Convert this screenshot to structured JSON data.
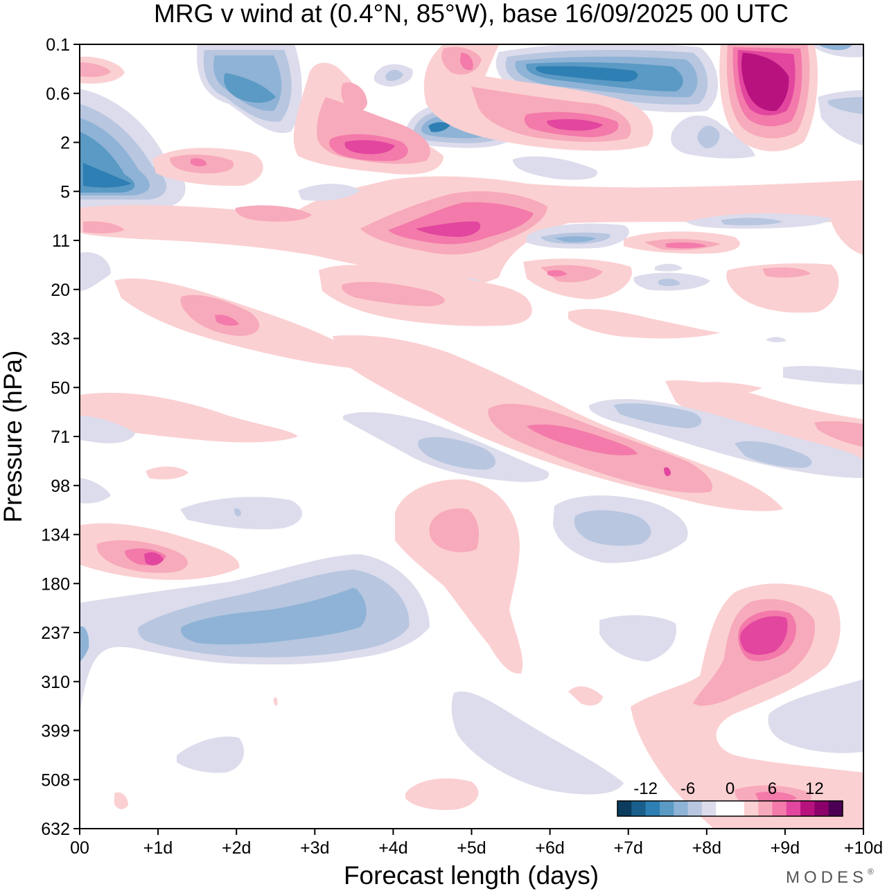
{
  "chart_data": {
    "type": "contourf",
    "title": "MRG v wind at (0.4°N, 85°W),  base 16/09/2025  00 UTC",
    "xlabel": "Forecast length (days)",
    "ylabel": "Pressure (hPa)",
    "x_unit": "days",
    "xlim": [
      0,
      10
    ],
    "x_ticks": [
      {
        "value": 0,
        "label": "00"
      },
      {
        "value": 1,
        "label": "+1d"
      },
      {
        "value": 2,
        "label": "+2d"
      },
      {
        "value": 3,
        "label": "+3d"
      },
      {
        "value": 4,
        "label": "+4d"
      },
      {
        "value": 5,
        "label": "+5d"
      },
      {
        "value": 6,
        "label": "+6d"
      },
      {
        "value": 7,
        "label": "+7d"
      },
      {
        "value": 8,
        "label": "+8d"
      },
      {
        "value": 9,
        "label": "+9d"
      },
      {
        "value": 10,
        "label": "+10d"
      }
    ],
    "y_ticks": [
      "0.1",
      "0.6",
      "2",
      "5",
      "11",
      "20",
      "33",
      "50",
      "71",
      "98",
      "134",
      "180",
      "237",
      "310",
      "399",
      "508",
      "632"
    ],
    "y_axis_note": "pressure levels, increasing downward (top 0.1 hPa, bottom 632 hPa)",
    "colorbar": {
      "levels": [
        -14,
        -12,
        -10,
        -8,
        -6,
        -4,
        -2,
        0,
        2,
        4,
        6,
        8,
        10,
        12,
        14
      ],
      "tick_labels": [
        "-12",
        "-6",
        "0",
        "6",
        "12"
      ],
      "tick_values": [
        -12,
        -6,
        0,
        6,
        12
      ],
      "colors": [
        "#0b3c5d",
        "#1a5f8c",
        "#2e7fb3",
        "#5a9ac4",
        "#8eb3d6",
        "#b8c6e0",
        "#dcdcec",
        "#ffffff",
        "#ffffff",
        "#fbd0d2",
        "#f7aabb",
        "#f37aaa",
        "#e2469e",
        "#b8127f",
        "#8b006a",
        "#4b0055"
      ]
    },
    "features": [
      {
        "sign": "negative",
        "x": 0.3,
        "p": "4",
        "magnitude": 8,
        "note": "strong negative near surface of stratosphere, day 0"
      },
      {
        "sign": "negative",
        "x": 2.0,
        "p": "0.6",
        "magnitude": 8
      },
      {
        "sign": "negative",
        "x": 6.5,
        "p": "0.4",
        "magnitude": 10
      },
      {
        "sign": "negative",
        "x": 4.6,
        "p": "1.5",
        "magnitude": 8
      },
      {
        "sign": "positive",
        "x": 8.9,
        "p": "0.4",
        "magnitude": 13
      },
      {
        "sign": "positive",
        "x": 6.6,
        "p": "1.5",
        "magnitude": 8
      },
      {
        "sign": "positive",
        "x": 3.7,
        "p": "2.2",
        "magnitude": 9
      },
      {
        "sign": "positive",
        "x": 5.0,
        "p": "9",
        "magnitude": 9
      },
      {
        "sign": "positive",
        "x": 7.1,
        "p": "70",
        "magnitude": 8
      },
      {
        "sign": "positive",
        "x": 1.0,
        "p": "150",
        "magnitude": 9
      },
      {
        "sign": "positive",
        "x": 9.0,
        "p": "230",
        "magnitude": 8
      },
      {
        "sign": "negative",
        "x": 2.5,
        "p": "230",
        "magnitude": 6
      },
      {
        "sign": "negative",
        "x": 7.2,
        "p": "125",
        "magnitude": 5
      },
      {
        "sign": "negative",
        "x": 4.5,
        "p": "85",
        "magnitude": 5
      }
    ]
  },
  "branding": {
    "logo_text": "MODES",
    "registered_mark": "®"
  }
}
